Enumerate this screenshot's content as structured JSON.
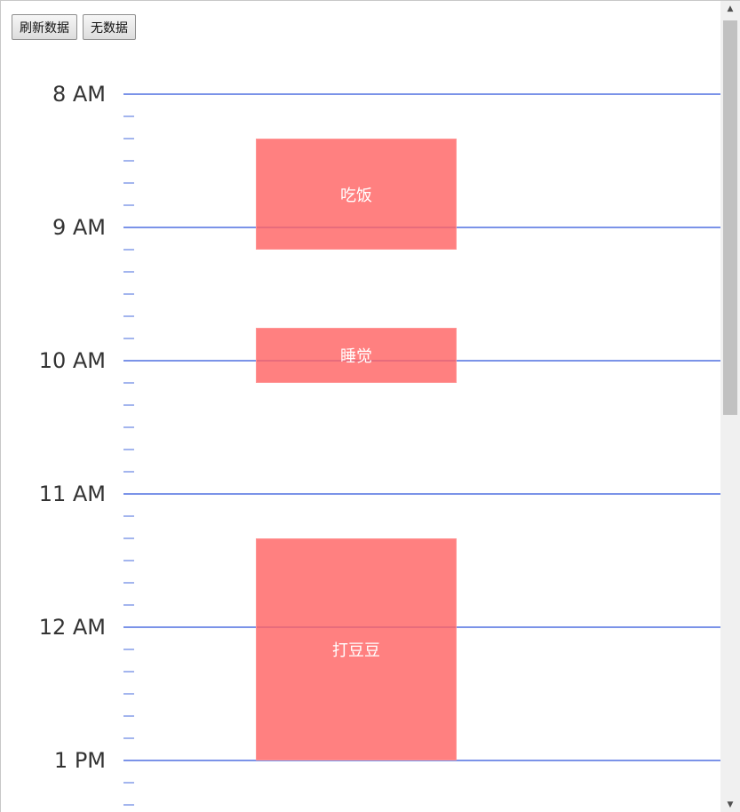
{
  "toolbar": {
    "refresh_label": "刷新数据",
    "empty_label": "无数据"
  },
  "timeline": {
    "start_hour": 8,
    "hour_labels": [
      "8 AM",
      "9 AM",
      "10 AM",
      "11 AM",
      "12 AM",
      "1 PM"
    ],
    "ticks_per_hour": 6,
    "colors": {
      "hour_line": "#7b93e8",
      "tick": "#a3b5ee",
      "event": "#ff6464"
    },
    "events": [
      {
        "label": "吃饭",
        "start": "8:20",
        "end": "9:10"
      },
      {
        "label": "睡觉",
        "start": "9:45",
        "end": "10:10"
      },
      {
        "label": "打豆豆",
        "start": "11:20",
        "end": "13:00"
      }
    ]
  },
  "scrollbar": {
    "up_icon": "triangle-up",
    "down_icon": "triangle-down"
  }
}
